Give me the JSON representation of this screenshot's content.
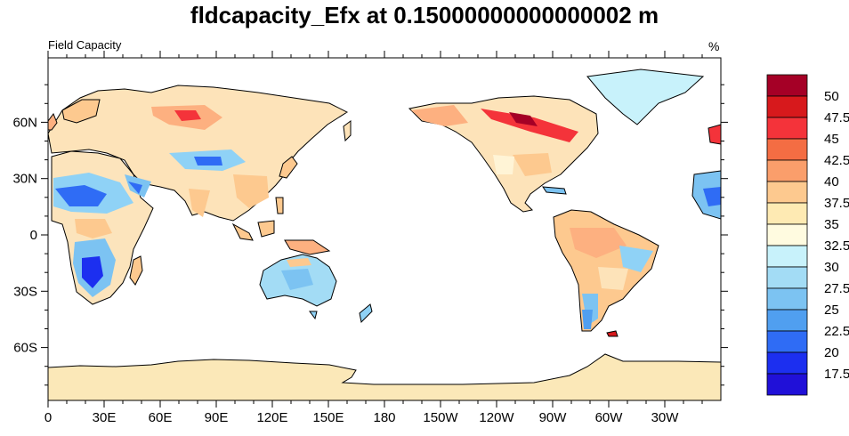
{
  "title": "fldcapacity_Efx at 0.15000000000000002 m",
  "subtitle_left": "Field Capacity",
  "units": "%",
  "map": {
    "projection": "cylindrical-equidistant",
    "center_longitude": 180,
    "lon_labels": [
      "0",
      "30E",
      "60E",
      "90E",
      "120E",
      "150E",
      "180",
      "150W",
      "120W",
      "90W",
      "60W",
      "30W"
    ],
    "lat_labels": [
      "60N",
      "30N",
      "0",
      "30S",
      "60S"
    ]
  },
  "colorbar": {
    "labels": [
      "50",
      "47.5",
      "45",
      "42.5",
      "40",
      "37.5",
      "35",
      "32.5",
      "30",
      "27.5",
      "25",
      "22.5",
      "20",
      "17.5"
    ],
    "colors": [
      "#a50026",
      "#d7191c",
      "#f4333a",
      "#f46d43",
      "#fa9e6b",
      "#fdc98f",
      "#feeab3",
      "#fffbe0",
      "#c8f2fb",
      "#a3dcf5",
      "#7cc3f2",
      "#509ff0",
      "#2f6cf5",
      "#1c2ff0",
      "#2010d8"
    ]
  },
  "colors": {
    "ocean": "#ffffff",
    "antarctica": "#fbe8b8",
    "coastline": "#000000"
  }
}
